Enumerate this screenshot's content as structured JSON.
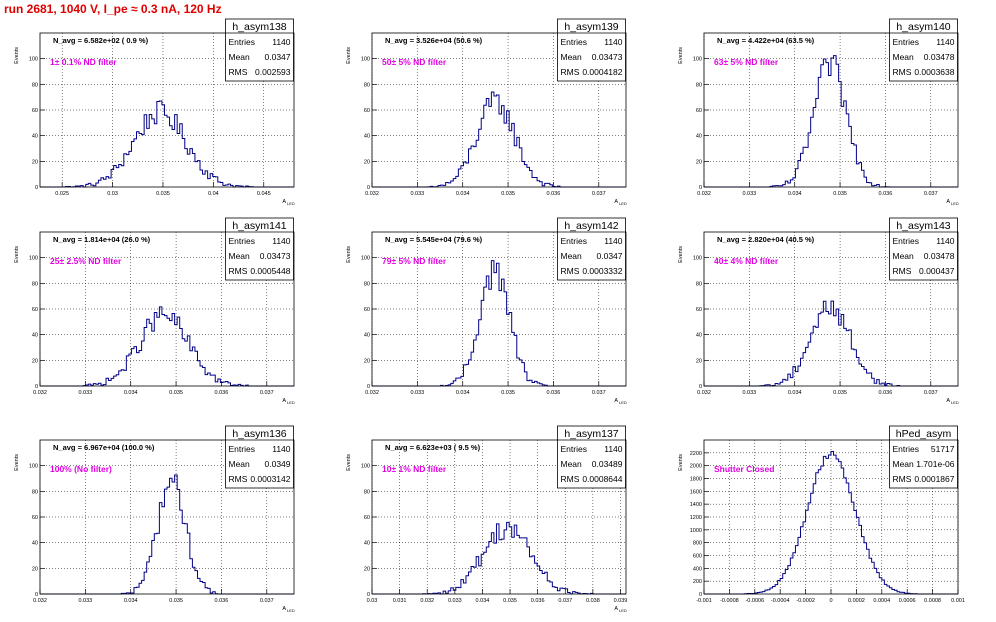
{
  "page_title": "run 2681,  1040 V, I_pe ≈ 0.3 nA, 120 Hz",
  "colors": {
    "title": "#e00000",
    "histogram": "#000088",
    "annotation": "#e000e0",
    "frame": "#000000",
    "grid": "#000000"
  },
  "stat_labels": {
    "entries": "Entries",
    "mean": "Mean",
    "rms": "RMS"
  },
  "chart_data": [
    {
      "type": "histogram",
      "name": "h_asym138",
      "ylabel": "Events",
      "xlabel": "A",
      "xlabel_sub": "LED",
      "grid": true,
      "navg": "N_avg = 6.582e+02 ( 0.9 %)",
      "note": "1± 0.1% ND filter",
      "entries": "1140",
      "mean": "0.0347",
      "rms": "0.002593",
      "xlim": [
        0.0228,
        0.048
      ],
      "ylim": [
        0,
        120
      ],
      "xticks": [
        0.025,
        0.03,
        0.035,
        0.04,
        0.045
      ],
      "xtick_labels": [
        "0.025",
        "0.03",
        "0.035",
        "0.04",
        "0.045"
      ],
      "yticks": [
        0,
        20,
        40,
        60,
        80,
        100
      ],
      "ytick_labels": [
        "0",
        "20",
        "40",
        "60",
        "80",
        "100"
      ],
      "hist_gauss": {
        "mean": 0.0347,
        "sigma": 0.0026,
        "peak": 58
      }
    },
    {
      "type": "histogram",
      "name": "h_asym139",
      "ylabel": "Events",
      "xlabel": "A",
      "xlabel_sub": "LED",
      "grid": true,
      "navg": "N_avg = 3.526e+04 (50.6 %)",
      "note": "50± 5% ND filter",
      "entries": "1140",
      "mean": "0.03473",
      "rms": "0.0004182",
      "xlim": [
        0.032,
        0.0376
      ],
      "ylim": [
        0,
        120
      ],
      "xticks": [
        0.032,
        0.033,
        0.034,
        0.035,
        0.036,
        0.037
      ],
      "xtick_labels": [
        "0.032",
        "0.033",
        "0.034",
        "0.035",
        "0.036",
        "0.037"
      ],
      "yticks": [
        0,
        20,
        40,
        60,
        80,
        100
      ],
      "ytick_labels": [
        "0",
        "20",
        "40",
        "60",
        "80",
        "100"
      ],
      "hist_gauss": {
        "mean": 0.03473,
        "sigma": 0.00042,
        "peak": 66
      }
    },
    {
      "type": "histogram",
      "name": "h_asym140",
      "ylabel": "Events",
      "xlabel": "A",
      "xlabel_sub": "LED",
      "grid": true,
      "navg": "N_avg = 4.422e+04 (63.5 %)",
      "note": "63± 5% ND filter",
      "entries": "1140",
      "mean": "0.03478",
      "rms": "0.0003638",
      "xlim": [
        0.032,
        0.0376
      ],
      "ylim": [
        0,
        120
      ],
      "xticks": [
        0.032,
        0.033,
        0.034,
        0.035,
        0.036,
        0.037
      ],
      "xtick_labels": [
        "0.032",
        "0.033",
        "0.034",
        "0.035",
        "0.036",
        "0.037"
      ],
      "yticks": [
        0,
        20,
        40,
        60,
        80,
        100
      ],
      "ytick_labels": [
        "0",
        "20",
        "40",
        "60",
        "80",
        "100"
      ],
      "hist_gauss": {
        "mean": 0.03478,
        "sigma": 0.00036,
        "peak": 95
      }
    },
    {
      "type": "histogram",
      "name": "h_asym141",
      "ylabel": "Events",
      "xlabel": "A",
      "xlabel_sub": "LED",
      "grid": true,
      "navg": "N_avg = 1.814e+04 (26.0 %)",
      "note": "25± 2.5% ND filter",
      "entries": "1140",
      "mean": "0.03473",
      "rms": "0.0005448",
      "xlim": [
        0.032,
        0.0376
      ],
      "ylim": [
        0,
        120
      ],
      "xticks": [
        0.032,
        0.033,
        0.034,
        0.035,
        0.036,
        0.037
      ],
      "xtick_labels": [
        "0.032",
        "0.033",
        "0.034",
        "0.035",
        "0.036",
        "0.037"
      ],
      "yticks": [
        0,
        20,
        40,
        60,
        80,
        100
      ],
      "ytick_labels": [
        "0",
        "20",
        "40",
        "60",
        "80",
        "100"
      ],
      "hist_gauss": {
        "mean": 0.03473,
        "sigma": 0.00054,
        "peak": 55
      }
    },
    {
      "type": "histogram",
      "name": "h_asym142",
      "ylabel": "Events",
      "xlabel": "A",
      "xlabel_sub": "LED",
      "grid": true,
      "navg": "N_avg = 5.545e+04 (79.6 %)",
      "note": "79± 5% ND filter",
      "entries": "1140",
      "mean": "0.0347",
      "rms": "0.0003332",
      "xlim": [
        0.032,
        0.0376
      ],
      "ylim": [
        0,
        120
      ],
      "xticks": [
        0.032,
        0.033,
        0.034,
        0.035,
        0.036,
        0.037
      ],
      "xtick_labels": [
        "0.032",
        "0.033",
        "0.034",
        "0.035",
        "0.036",
        "0.037"
      ],
      "yticks": [
        0,
        20,
        40,
        60,
        80,
        100
      ],
      "ytick_labels": [
        "0",
        "20",
        "40",
        "60",
        "80",
        "100"
      ],
      "hist_gauss": {
        "mean": 0.0347,
        "sigma": 0.00033,
        "peak": 90
      }
    },
    {
      "type": "histogram",
      "name": "h_asym143",
      "ylabel": "Events",
      "xlabel": "A",
      "xlabel_sub": "LED",
      "grid": true,
      "navg": "N_avg = 2.820e+04 (40.5 %)",
      "note": "40± 4% ND filter",
      "entries": "1140",
      "mean": "0.03478",
      "rms": "0.000437",
      "xlim": [
        0.032,
        0.0376
      ],
      "ylim": [
        0,
        120
      ],
      "xticks": [
        0.032,
        0.033,
        0.034,
        0.035,
        0.036,
        0.037
      ],
      "xtick_labels": [
        "0.032",
        "0.033",
        "0.034",
        "0.035",
        "0.036",
        "0.037"
      ],
      "yticks": [
        0,
        20,
        40,
        60,
        80,
        100
      ],
      "ytick_labels": [
        "0",
        "20",
        "40",
        "60",
        "80",
        "100"
      ],
      "hist_gauss": {
        "mean": 0.03478,
        "sigma": 0.00044,
        "peak": 62
      }
    },
    {
      "type": "histogram",
      "name": "h_asym136",
      "ylabel": "Events",
      "xlabel": "A",
      "xlabel_sub": "LED",
      "grid": true,
      "navg": "N_avg = 6.967e+04 (100.0 %)",
      "note": "100% (No filter)",
      "entries": "1140",
      "mean": "0.0349",
      "rms": "0.0003142",
      "xlim": [
        0.032,
        0.0376
      ],
      "ylim": [
        0,
        120
      ],
      "xticks": [
        0.032,
        0.033,
        0.034,
        0.035,
        0.036,
        0.037
      ],
      "xtick_labels": [
        "0.032",
        "0.033",
        "0.034",
        "0.035",
        "0.036",
        "0.037"
      ],
      "yticks": [
        0,
        20,
        40,
        60,
        80,
        100
      ],
      "ytick_labels": [
        "0",
        "20",
        "40",
        "60",
        "80",
        "100"
      ],
      "hist_gauss": {
        "mean": 0.0349,
        "sigma": 0.00031,
        "peak": 88
      }
    },
    {
      "type": "histogram",
      "name": "h_asym137",
      "ylabel": "Events",
      "xlabel": "A",
      "xlabel_sub": "LED",
      "grid": true,
      "navg": "N_avg = 6.623e+03 ( 9.5 %)",
      "note": "10± 1% ND filter",
      "entries": "1140",
      "mean": "0.03489",
      "rms": "0.0008644",
      "xlim": [
        0.03,
        0.0392
      ],
      "ylim": [
        0,
        120
      ],
      "xticks": [
        0.03,
        0.031,
        0.032,
        0.033,
        0.034,
        0.035,
        0.036,
        0.037,
        0.038,
        0.039
      ],
      "xtick_labels": [
        "0.03",
        "0.031",
        "0.032",
        "0.033",
        "0.034",
        "0.035",
        "0.036",
        "0.037",
        "0.038",
        "0.039"
      ],
      "yticks": [
        0,
        20,
        40,
        60,
        80,
        100
      ],
      "ytick_labels": [
        "0",
        "20",
        "40",
        "60",
        "80",
        "100"
      ],
      "hist_gauss": {
        "mean": 0.03489,
        "sigma": 0.00086,
        "peak": 52
      }
    },
    {
      "type": "histogram",
      "name": "hPed_asym",
      "ylabel": "Events",
      "xlabel": "",
      "xlabel_sub": "",
      "grid": true,
      "navg": "",
      "note": "Shutter Closed",
      "entries": "51717",
      "mean": "1.701e-06",
      "rms": "0.0001867",
      "xlim": [
        -0.001,
        0.001
      ],
      "ylim": [
        0,
        2400
      ],
      "xticks": [
        -0.001,
        -0.0008,
        -0.0006,
        -0.0004,
        -0.0002,
        0,
        0.0002,
        0.0004,
        0.0006,
        0.0008,
        0.001
      ],
      "xtick_labels": [
        "-0.001",
        "-0.0008",
        "-0.0006",
        "-0.0004",
        "-0.0002",
        "0",
        "0.0002",
        "0.0004",
        "0.0006",
        "0.0008",
        "0.001"
      ],
      "yticks": [
        0,
        200,
        400,
        600,
        800,
        1000,
        1200,
        1400,
        1600,
        1800,
        2000,
        2200
      ],
      "ytick_labels": [
        "0",
        "200",
        "400",
        "600",
        "800",
        "1000",
        "1200",
        "1400",
        "1600",
        "1800",
        "2000",
        "2200"
      ],
      "hist_gauss": {
        "mean": 1.7e-06,
        "sigma": 0.000187,
        "peak": 2200
      }
    }
  ]
}
